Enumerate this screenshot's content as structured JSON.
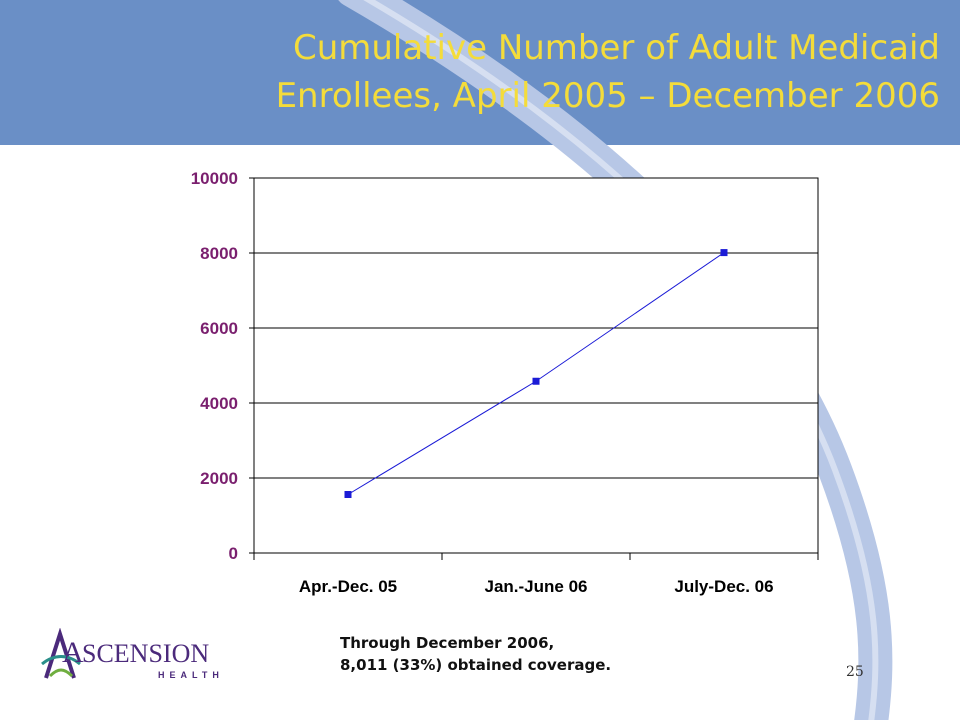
{
  "slide": {
    "title": "Cumulative Number of Adult Medicaid Enrollees, April 2005 – December 2006",
    "caption_line1": "Through December 2006,",
    "caption_line2": "8,011 (33%) obtained coverage.",
    "page_number": "25"
  },
  "logo": {
    "first_letter": "A",
    "rest": "SCENSION",
    "sub": "HEALTH",
    "colors": {
      "purple": "#4b2a7b",
      "teal": "#2a8f8a",
      "green": "#6fae3f"
    }
  },
  "colors": {
    "header_band": "#6a8fc6",
    "title_text": "#f4dc3a",
    "swoosh": "#b7c7e6",
    "tick_label": "#7a1f6e",
    "series": "#1b1bd6"
  },
  "chart_data": {
    "type": "line",
    "categories": [
      "Apr.-Dec. 05",
      "Jan.-June 06",
      "July-Dec. 06"
    ],
    "series": [
      {
        "values": [
          1560,
          4580,
          8011
        ]
      }
    ],
    "ylim": [
      0,
      10000
    ],
    "yticks": [
      "0",
      "2000",
      "4000",
      "6000",
      "8000",
      "10000"
    ],
    "grid": true,
    "legend": "none"
  }
}
